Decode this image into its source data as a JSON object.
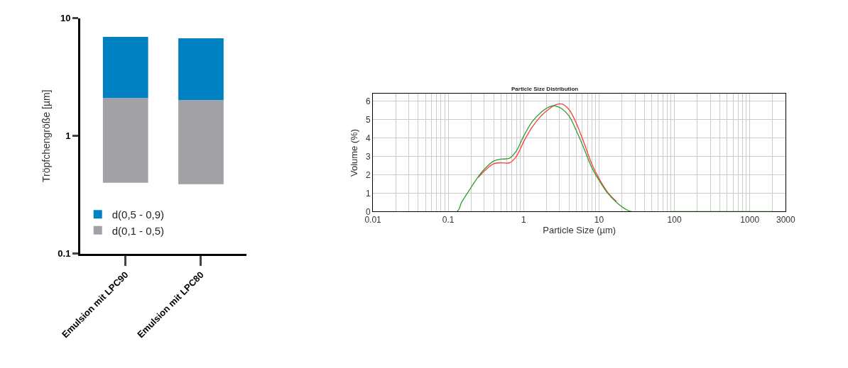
{
  "chart_data": [
    {
      "type": "bar",
      "ylabel": "Tröpfchengröße [µm]",
      "categories": [
        "Emulsion mit LPC90",
        "Emulsion mit LPC80"
      ],
      "log": "y",
      "ylim": [
        0.1,
        10
      ],
      "yticks": [
        0.1,
        1,
        10
      ],
      "grid": false,
      "legend": "bottom left",
      "series": [
        {
          "name": "d(0,1 - 0,5)",
          "color": "#a2a1a6",
          "base": [
            0.4,
            0.39
          ],
          "values": [
            1.7,
            1.62
          ]
        },
        {
          "name": "d(0,5 - 0,9)",
          "color": "#0081c2",
          "base": [
            2.1,
            2.01
          ],
          "values": [
            4.85,
            4.75
          ]
        }
      ]
    },
    {
      "type": "line",
      "title": "Particle Size Distribution",
      "xlabel": "Particle Size (µm)",
      "ylabel": "Volume (%)",
      "log": "x",
      "xlim": [
        0.01,
        3000
      ],
      "xticks": [
        0.01,
        0.1,
        1,
        10,
        100,
        1000,
        3000
      ],
      "ylim": [
        0,
        6.4
      ],
      "yticks": [
        0,
        1,
        2,
        3,
        4,
        5,
        6
      ],
      "grid": true,
      "legend": false,
      "series": [
        {
          "color": "#ff3b3b",
          "x": [
            0.25,
            0.3,
            0.4,
            0.5,
            0.65,
            0.8,
            1.0,
            1.3,
            1.7,
            2.2,
            2.6,
            3.2,
            4,
            5,
            6.5,
            8,
            10,
            13,
            17
          ],
          "values": [
            1.85,
            2.2,
            2.6,
            2.65,
            2.65,
            3.0,
            3.8,
            4.6,
            5.2,
            5.6,
            5.8,
            5.85,
            5.55,
            4.8,
            3.6,
            2.6,
            1.8,
            1.05,
            0.55
          ]
        },
        {
          "color": "#2e9e2e",
          "x": [
            0.02,
            0.13,
            0.15,
            0.2,
            0.25,
            0.3,
            0.4,
            0.5,
            0.65,
            0.8,
            1.0,
            1.3,
            1.7,
            2.2,
            2.6,
            3.2,
            4,
            5,
            6.5,
            8,
            10,
            13,
            17,
            22,
            27,
            100,
            2000
          ],
          "values": [
            0,
            0,
            0.5,
            1.3,
            1.9,
            2.3,
            2.75,
            2.85,
            2.9,
            3.3,
            4.1,
            4.9,
            5.4,
            5.7,
            5.75,
            5.6,
            5.2,
            4.4,
            3.3,
            2.4,
            1.7,
            1.0,
            0.5,
            0.15,
            0,
            0,
            0
          ]
        }
      ]
    }
  ]
}
